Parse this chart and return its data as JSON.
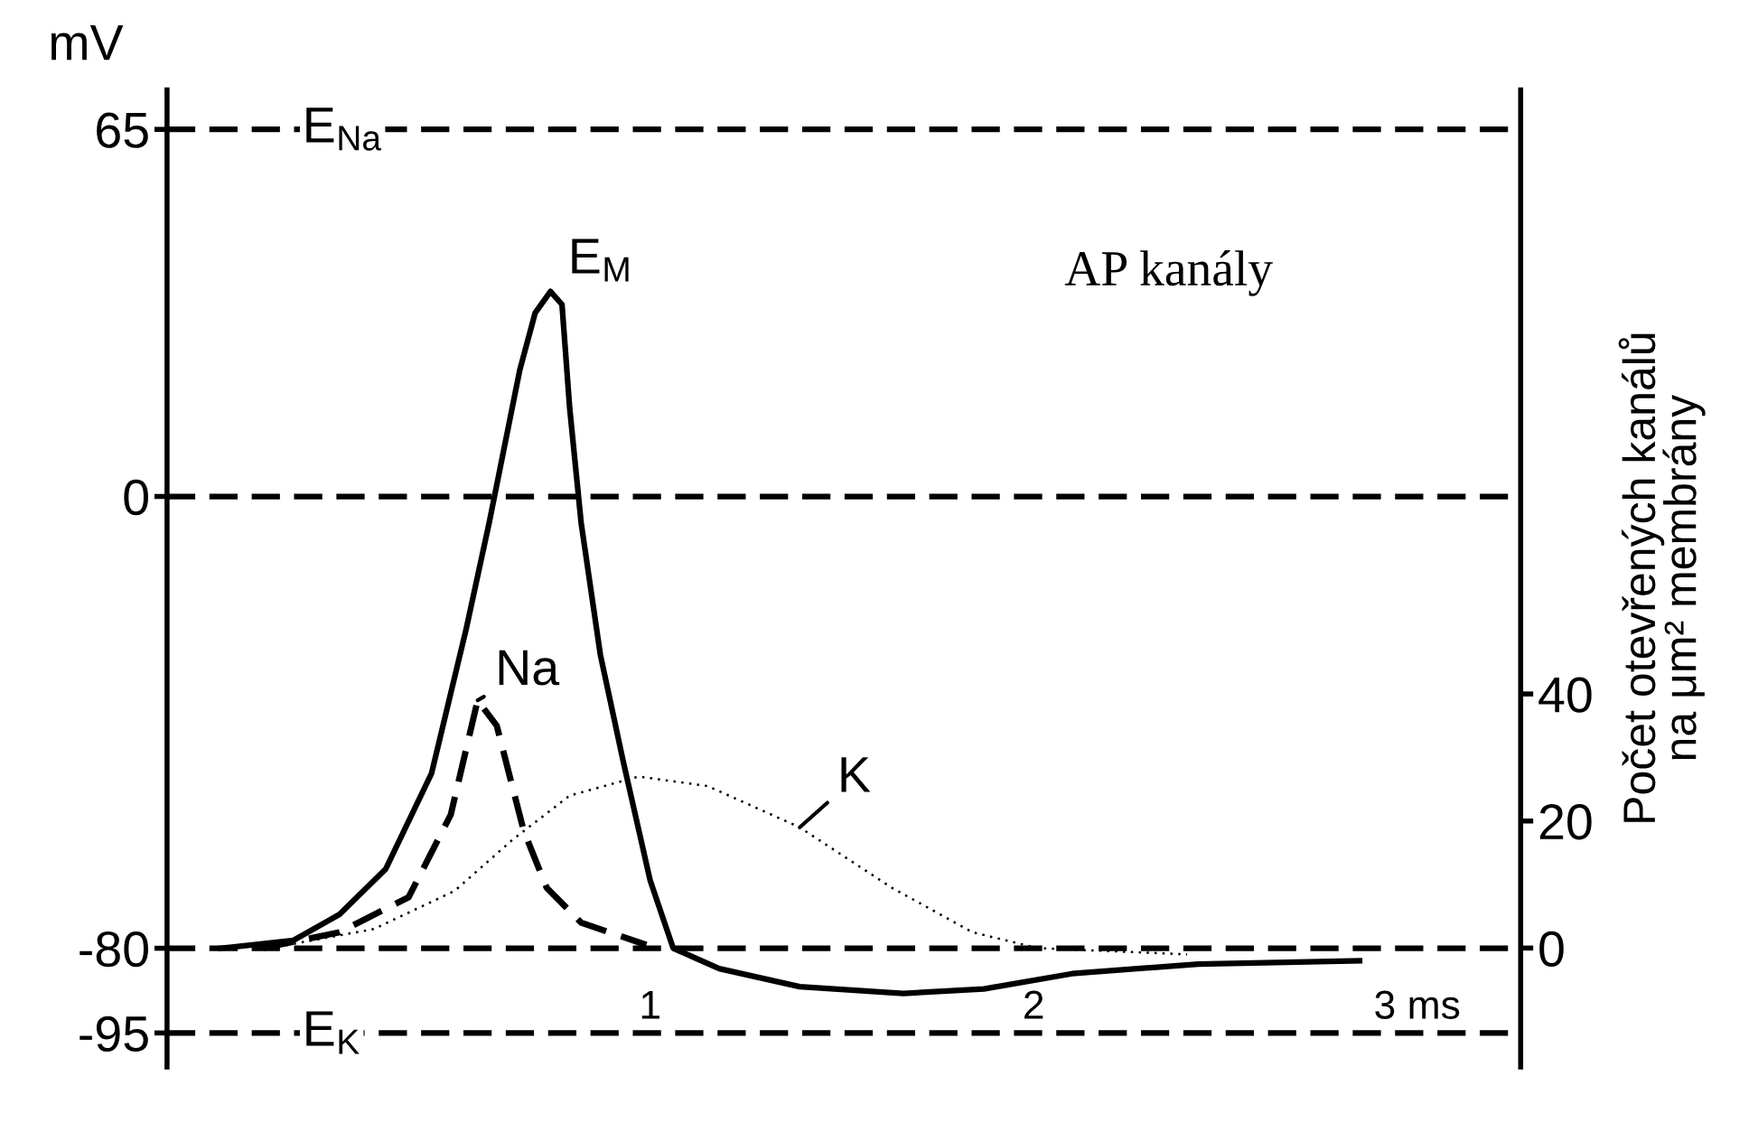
{
  "chart_data": {
    "type": "line",
    "ylabel": "mV",
    "y2label": "Počet otevřených kanálů\nna μm² membrány",
    "xlim": [
      -0.26,
      3.27
    ],
    "ylim": [
      -101,
      72
    ],
    "y2lim": [
      -18.7,
      135.1
    ],
    "xticks": [
      1,
      2,
      {
        "value": 3,
        "label": "3 ms"
      }
    ],
    "yticks": [
      -95,
      -80,
      0,
      65
    ],
    "y2ticks": [
      0,
      20,
      40
    ],
    "grid": false,
    "legend": false,
    "marker": "none",
    "series": [
      {
        "name": "E$_{M}$",
        "color": "#000000",
        "line_style": "solid",
        "x": [
          -0.12,
          0.07,
          0.19,
          0.31,
          0.43,
          0.52,
          0.58,
          0.66,
          0.7,
          0.74,
          0.77,
          0.79,
          0.82,
          0.87,
          0.93,
          1.0,
          1.06,
          1.18,
          1.39,
          1.66,
          1.87,
          2.1,
          2.43,
          2.85
        ],
        "values": [
          -80,
          -78.6,
          -74,
          -66,
          -49,
          -23.5,
          -4.7,
          22.4,
          32.5,
          36.3,
          34,
          15.7,
          -4.7,
          -28,
          -47,
          -68,
          -80,
          -83.6,
          -86.8,
          -88,
          -87.2,
          -84.5,
          -82.8,
          -82.2
        ]
      },
      {
        "name": "Na",
        "color": "#000000",
        "line_style": "dashed",
        "axis": "y2",
        "x": [
          -0.01,
          0.19,
          0.37,
          0.48,
          0.55,
          0.6,
          0.67,
          0.73,
          0.82,
          0.99
        ],
        "values": [
          0,
          2.5,
          8,
          21,
          39,
          35,
          18.5,
          9.5,
          4,
          0.5
        ]
      },
      {
        "name": "K",
        "color": "#000000",
        "line_style": "dotted",
        "axis": "y2",
        "x": [
          0.01,
          0.28,
          0.49,
          0.64,
          0.79,
          0.97,
          1.15,
          1.39,
          1.63,
          1.84,
          2.01,
          2.4
        ],
        "values": [
          0,
          3,
          9,
          17,
          24,
          27,
          25.5,
          19,
          9.5,
          2.5,
          0,
          -1
        ]
      }
    ],
    "ref_lines": [
      {
        "axis": "y",
        "value": 65,
        "label": "E$_{Na}$",
        "color": "#000000",
        "line_style": "dashed"
      },
      {
        "axis": "y",
        "value": 0,
        "color": "#000000",
        "line_style": "dashed"
      },
      {
        "axis": "y",
        "value": -80,
        "color": "#000000",
        "line_style": "dashed"
      },
      {
        "axis": "y",
        "value": -95,
        "label": "E$_{K}$",
        "color": "#000000",
        "line_style": "dashed"
      }
    ],
    "annotations": [
      "AP kanály"
    ]
  }
}
